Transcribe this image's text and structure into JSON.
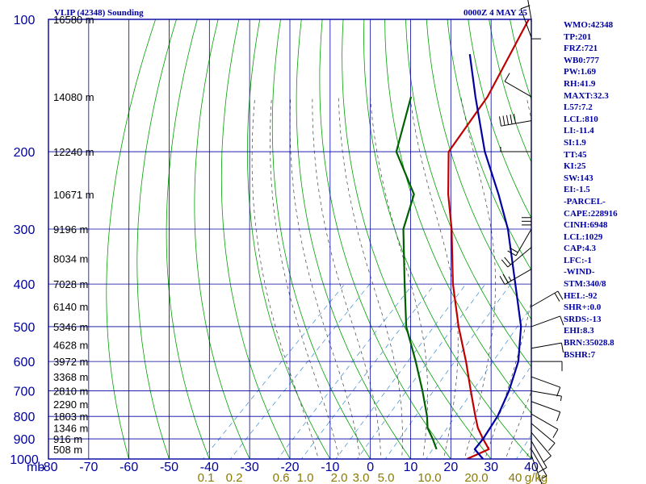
{
  "header": {
    "station_title": "VLIP (42348) Sounding",
    "time_label": "0000Z  4 MAY 25"
  },
  "colors": {
    "frame": "#0000a0",
    "grid": "#0000a0",
    "dry_adiabat": "#00a000",
    "moist_adiabat": "#404040",
    "mixing_ratio": "#3a8ad0",
    "temperature": "#c00000",
    "dewpoint": "#006000",
    "parcel": "#0000a0",
    "text": "#0000a0",
    "wind": "#000000"
  },
  "indices": [
    "WMO:42348",
    "TP:201",
    "FRZ:721",
    "WB0:777",
    "PW:1.69",
    "RH:41.9",
    "MAXT:32.3",
    "L57:7.2",
    "LCL:810",
    "LI:-11.4",
    "SI:1.9",
    "TT:45",
    "KI:25",
    "SW:143",
    "EI:-1.5",
    "-PARCEL-",
    "CAPE:228916",
    "CINH:6948",
    "LCL:1029",
    "CAP:4.3",
    "LFC:-1",
    "-WIND-",
    "STM:340/8",
    "HEL:-92",
    "SHR+:0.0",
    "SRDS:-13",
    "EHI:8.3",
    "BRN:35028.8",
    "BSHR:7"
  ],
  "chart_data": {
    "type": "line",
    "subtype": "skew-T log-P sounding",
    "title": "VLIP (42348) Sounding",
    "subtitle": "0000Z  4 MAY 25",
    "xlabel": "",
    "ylabel": "mb",
    "xlim": [
      -80,
      40
    ],
    "ylim": [
      1000,
      100
    ],
    "y_scale": "log",
    "pressure_ticks": [
      100,
      200,
      300,
      400,
      500,
      600,
      700,
      800,
      900,
      1000
    ],
    "temperature_ticks": [
      -80,
      -70,
      -60,
      -50,
      -40,
      -30,
      -20,
      -10,
      0,
      10,
      20,
      30,
      40
    ],
    "height_labels": [
      {
        "p": 100,
        "label": "16580 m"
      },
      {
        "p": 150,
        "label": "14080 m"
      },
      {
        "p": 200,
        "label": "12240 m"
      },
      {
        "p": 250,
        "label": "10671 m"
      },
      {
        "p": 300,
        "label": "9196 m"
      },
      {
        "p": 350,
        "label": "8034 m"
      },
      {
        "p": 400,
        "label": "7028 m"
      },
      {
        "p": 450,
        "label": "6140 m"
      },
      {
        "p": 500,
        "label": "5346 m"
      },
      {
        "p": 550,
        "label": "4628 m"
      },
      {
        "p": 600,
        "label": "3972 m"
      },
      {
        "p": 650,
        "label": "3368 m"
      },
      {
        "p": 700,
        "label": "2810 m"
      },
      {
        "p": 750,
        "label": "2290 m"
      },
      {
        "p": 800,
        "label": "1803 m"
      },
      {
        "p": 850,
        "label": "1346 m"
      },
      {
        "p": 900,
        "label": "916 m"
      },
      {
        "p": 950,
        "label": "508 m"
      }
    ],
    "mixing_ratio_labels": [
      "0.1",
      "0.2",
      "0.6",
      "1.0",
      "2.0",
      "3.0",
      "5.0",
      "10.0",
      "20.0",
      "40",
      "g/kg"
    ],
    "mixing_ratio_values": [
      0.1,
      0.2,
      0.6,
      1.0,
      2.0,
      3.0,
      5.0,
      10.0,
      20.0,
      40.0
    ],
    "series": [
      {
        "name": "Temperature",
        "role": "temperature",
        "points": [
          {
            "p": 1000,
            "t": 24
          },
          {
            "p": 950,
            "t": 27
          },
          {
            "p": 900,
            "t": 23
          },
          {
            "p": 850,
            "t": 19
          },
          {
            "p": 800,
            "t": 15.5
          },
          {
            "p": 700,
            "t": 8
          },
          {
            "p": 600,
            "t": -0.5
          },
          {
            "p": 500,
            "t": -11
          },
          {
            "p": 400,
            "t": -23
          },
          {
            "p": 300,
            "t": -37
          },
          {
            "p": 250,
            "t": -46.5
          },
          {
            "p": 200,
            "t": -57
          },
          {
            "p": 150,
            "t": -61
          },
          {
            "p": 100,
            "t": -70
          }
        ]
      },
      {
        "name": "Dewpoint",
        "role": "dewpoint",
        "points": [
          {
            "p": 950,
            "t": 14
          },
          {
            "p": 900,
            "t": 10.5
          },
          {
            "p": 850,
            "t": 6.5
          },
          {
            "p": 800,
            "t": 3.5
          },
          {
            "p": 700,
            "t": -4
          },
          {
            "p": 600,
            "t": -13
          },
          {
            "p": 500,
            "t": -24
          },
          {
            "p": 400,
            "t": -35
          },
          {
            "p": 300,
            "t": -49
          },
          {
            "p": 250,
            "t": -55
          },
          {
            "p": 200,
            "t": -70
          },
          {
            "p": 150,
            "t": -80
          }
        ]
      },
      {
        "name": "Parcel",
        "role": "parcel",
        "points": [
          {
            "p": 1000,
            "t": 28
          },
          {
            "p": 950,
            "t": 23.5
          },
          {
            "p": 900,
            "t": 23
          },
          {
            "p": 800,
            "t": 21
          },
          {
            "p": 700,
            "t": 17.5
          },
          {
            "p": 600,
            "t": 12.5
          },
          {
            "p": 500,
            "t": 4.5
          },
          {
            "p": 400,
            "t": -7.5
          },
          {
            "p": 300,
            "t": -23
          },
          {
            "p": 250,
            "t": -34
          },
          {
            "p": 200,
            "t": -48
          },
          {
            "p": 150,
            "t": -64
          },
          {
            "p": 120,
            "t": -76
          }
        ]
      }
    ],
    "wind_barbs": [
      {
        "p": 100,
        "dir": 350,
        "spd": 10
      },
      {
        "p": 110,
        "dir": 340,
        "spd": 10
      },
      {
        "p": 130,
        "dir": 0,
        "spd": 10
      },
      {
        "p": 150,
        "dir": 300,
        "spd": 10
      },
      {
        "p": 170,
        "dir": 260,
        "spd": 50
      },
      {
        "p": 200,
        "dir": 270,
        "spd": 5
      },
      {
        "p": 250,
        "dir": 180,
        "spd": 30
      },
      {
        "p": 300,
        "dir": 210,
        "spd": 20
      },
      {
        "p": 330,
        "dir": 230,
        "spd": 20
      },
      {
        "p": 370,
        "dir": 240,
        "spd": 25
      },
      {
        "p": 450,
        "dir": 60,
        "spd": 20
      },
      {
        "p": 500,
        "dir": 70,
        "spd": 10
      },
      {
        "p": 560,
        "dir": 80,
        "spd": 10
      },
      {
        "p": 600,
        "dir": 90,
        "spd": 10
      },
      {
        "p": 650,
        "dir": 110,
        "spd": 10
      },
      {
        "p": 700,
        "dir": 100,
        "spd": 5
      },
      {
        "p": 740,
        "dir": 110,
        "spd": 10
      },
      {
        "p": 790,
        "dir": 120,
        "spd": 10
      },
      {
        "p": 830,
        "dir": 130,
        "spd": 10
      },
      {
        "p": 870,
        "dir": 140,
        "spd": 10
      },
      {
        "p": 910,
        "dir": 150,
        "spd": 10
      },
      {
        "p": 950,
        "dir": 150,
        "spd": 5
      },
      {
        "p": 980,
        "dir": 160,
        "spd": 5
      }
    ]
  }
}
